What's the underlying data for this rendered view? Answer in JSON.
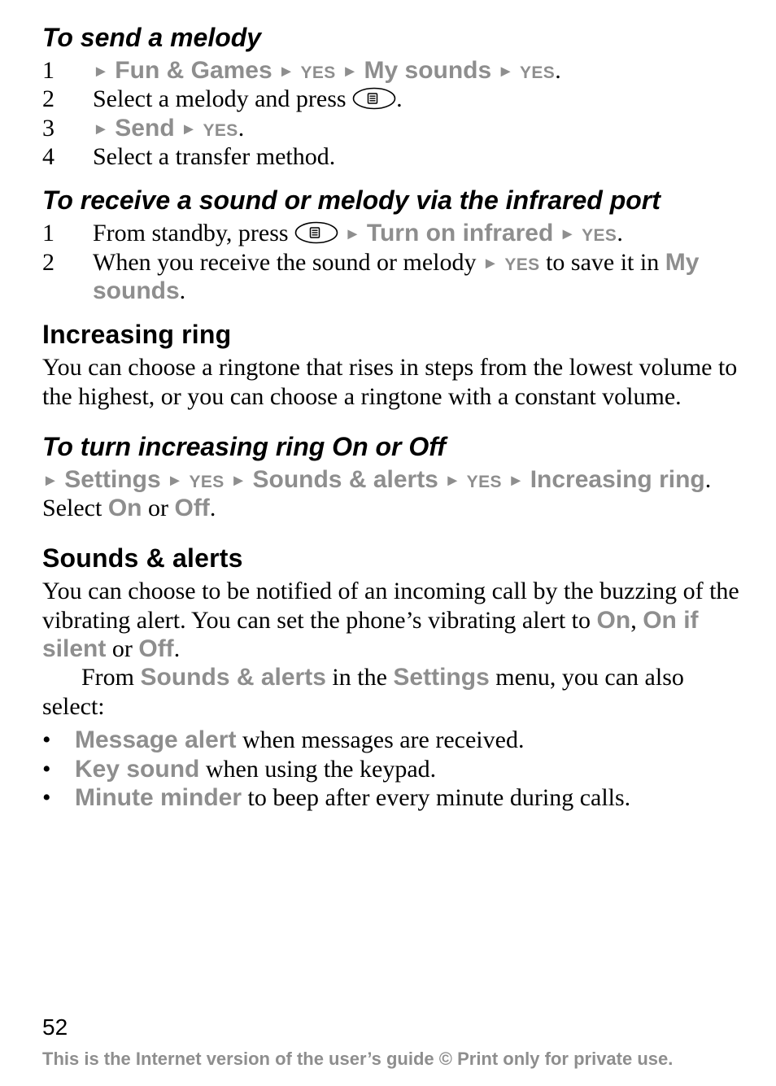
{
  "colors": {
    "text": "#000000",
    "menu_grey": "#8e8e8e",
    "footer_grey": "#8e8e8e",
    "background": "#ffffff"
  },
  "typography": {
    "body_family": "Times New Roman",
    "body_size_pt": 22,
    "heading_sans_family": "Arial",
    "h2_family": "Arial Black",
    "h3_italic": true,
    "h_size_pt": 24,
    "footer_family": "Arial",
    "footer_size_pt": 16,
    "page_number_size_pt": 21
  },
  "glyphs": {
    "triangle": "►",
    "bullet": "•"
  },
  "icons": {
    "options_key_svg": "<svg class=\"key-icon\" viewBox=\"0 0 54 28\" xmlns=\"http://www.w3.org/2000/svg\"><ellipse cx=\"27\" cy=\"14\" rx=\"25.5\" ry=\"12.5\" fill=\"none\" stroke=\"#000\" stroke-width=\"1.6\"/><rect x=\"19.5\" y=\"8\" width=\"11\" height=\"12\" rx=\"1.2\" fill=\"none\" stroke=\"#000\" stroke-width=\"1.5\"/><line x1=\"21.5\" y1=\"11.2\" x2=\"28.5\" y2=\"11.2\" stroke=\"#000\" stroke-width=\"1.4\"/><line x1=\"21.5\" y1=\"14\"   x2=\"28.5\" y2=\"14\"   stroke=\"#000\" stroke-width=\"1.4\"/><line x1=\"21.5\" y1=\"16.8\" x2=\"28.5\" y2=\"16.8\" stroke=\"#000\" stroke-width=\"1.4\"/></svg>"
  },
  "sections": {
    "send_melody": {
      "heading": "To send a melody",
      "steps": {
        "s1": {
          "num": "1",
          "seg1": "Fun & Games",
          "seg2": "My sounds",
          "yes": "yes",
          "period": "."
        },
        "s2": {
          "num": "2",
          "text_before": "Select a melody and press ",
          "period": "."
        },
        "s3": {
          "num": "3",
          "seg1": "Send",
          "yes": "yes",
          "period": "."
        },
        "s4": {
          "num": "4",
          "text": "Select a transfer method."
        }
      }
    },
    "receive_ir": {
      "heading": "To receive a sound or melody via the infrared port",
      "steps": {
        "s1": {
          "num": "1",
          "text_before": "From standby, press ",
          "seg1": "Turn on infrared",
          "yes": "yes",
          "period": "."
        },
        "s2": {
          "num": "2",
          "text_before": "When you receive the sound or melody ",
          "yes": "yes",
          "text_after": " to save it in ",
          "seg_end": "My sounds",
          "period": "."
        }
      }
    },
    "increasing_ring": {
      "heading": "Increasing ring",
      "body": "You can choose a ringtone that rises in steps from the lowest volume to the highest, or you can choose a ringtone with a constant volume."
    },
    "turn_increasing": {
      "heading": "To turn increasing ring On or Off",
      "line1": {
        "seg1": "Settings",
        "seg2": "Sounds & alerts",
        "seg3": "Increasing ring",
        "yes": "yes",
        "period": "."
      },
      "line2": {
        "before": "Select ",
        "on": "On",
        "or": " or ",
        "off": "Off",
        "period": "."
      }
    },
    "sounds_alerts": {
      "heading": "Sounds & alerts",
      "p1": {
        "before": "You can choose to be notified of an incoming call by the buzzing of the vibrating alert. You can set the phone’s vibrating alert to ",
        "on": "On",
        "c1": ", ",
        "onif": "On if silent",
        "or": " or ",
        "off": "Off",
        "period": "."
      },
      "p2": {
        "before": "From ",
        "sa": "Sounds & alerts",
        "mid": " in the ",
        "settings": "Settings",
        "after": " menu, you can also select:"
      },
      "bullets": {
        "b1": {
          "label": "Message alert",
          "rest": " when messages are received."
        },
        "b2": {
          "label": "Key sound",
          "rest": " when using the keypad."
        },
        "b3": {
          "label": "Minute minder",
          "rest": " to beep after every minute during calls."
        }
      }
    }
  },
  "footer": {
    "page_number": "52",
    "note": "This is the Internet version of the user’s guide © Print only for private use."
  }
}
